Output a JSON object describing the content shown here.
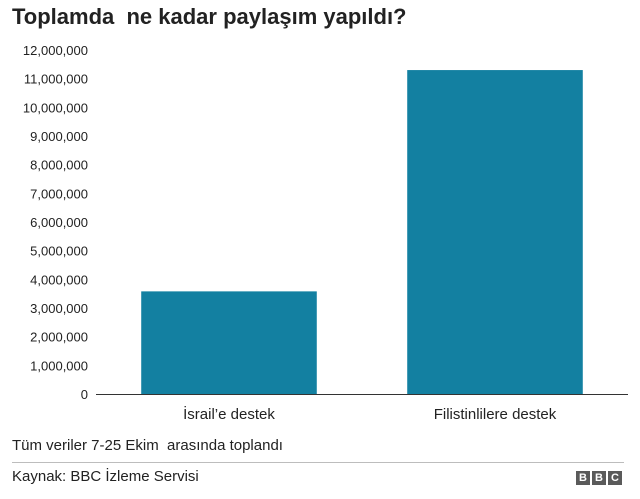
{
  "chart_data": {
    "type": "bar",
    "title": "Toplamda  ne kadar paylaşım yapıldı?",
    "categories": [
      "İsrail’e destek",
      "Filistinlilere destek"
    ],
    "values": [
      3580000,
      11300000
    ],
    "ylim": [
      0,
      12000000
    ],
    "yticks": [
      0,
      1000000,
      2000000,
      3000000,
      4000000,
      5000000,
      6000000,
      7000000,
      8000000,
      9000000,
      10000000,
      11000000,
      12000000
    ],
    "ytick_labels": [
      "0",
      "1,000,000",
      "2,000,000",
      "3,000,000",
      "4,000,000",
      "5,000,000",
      "6,000,000",
      "7,000,000",
      "8,000,000",
      "9,000,000",
      "10,000,000",
      "11,000,000",
      "12,000,000"
    ],
    "bar_color": "#1380a1",
    "grid": false
  },
  "footer": {
    "note": "Tüm veriler 7-25 Ekim  arasında toplandı",
    "source": "Kaynak: BBC İzleme Servisi",
    "logo_letters": [
      "B",
      "B",
      "C"
    ]
  }
}
